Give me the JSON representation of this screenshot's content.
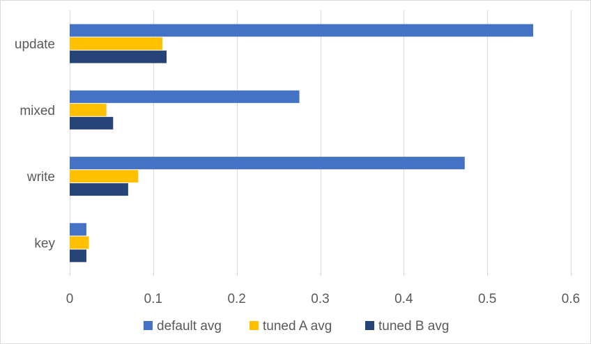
{
  "chart_data": {
    "type": "bar",
    "orientation": "horizontal",
    "categories": [
      "key",
      "write",
      "mixed",
      "update"
    ],
    "series": [
      {
        "name": "default avg",
        "values": [
          0.02,
          0.473,
          0.275,
          0.555
        ],
        "color": "#4472C4"
      },
      {
        "name": "tuned A avg",
        "values": [
          0.023,
          0.082,
          0.044,
          0.111
        ],
        "color": "#FFC000"
      },
      {
        "name": "tuned B avg",
        "values": [
          0.02,
          0.07,
          0.052,
          0.116
        ],
        "color": "#264478"
      }
    ],
    "title": "",
    "xlabel": "",
    "ylabel": "",
    "xlim": [
      0,
      0.6
    ],
    "x_ticks": [
      "0",
      "0.1",
      "0.2",
      "0.3",
      "0.4",
      "0.5",
      "0.6"
    ],
    "grid": "vertical",
    "legend_position": "bottom"
  }
}
